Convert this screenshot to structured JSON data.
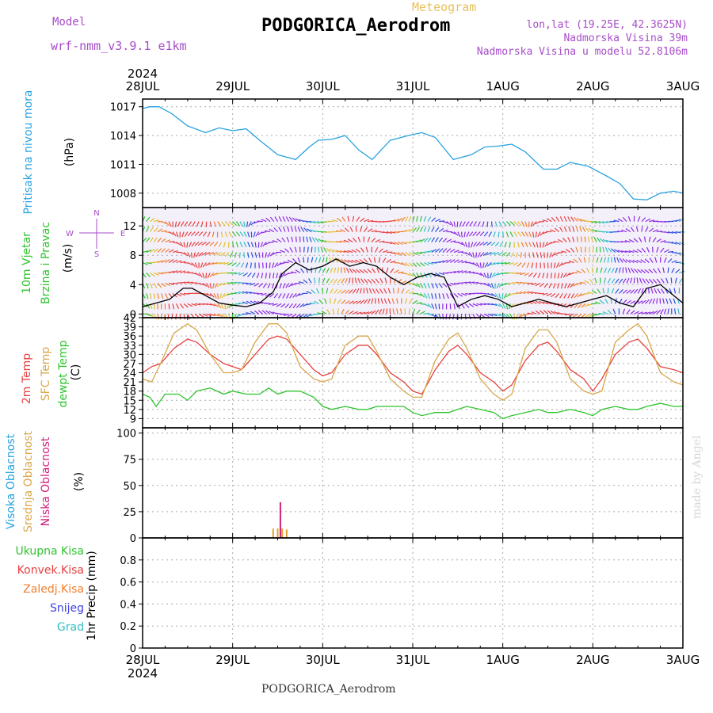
{
  "header": {
    "model_label": "Model",
    "model_value": "wrf-nmm_v3.9.1 e1km",
    "meteogram_label": "Meteogram",
    "station": "PODGORICA_Aerodrom",
    "lonlat": "lon,lat (19.25E, 42.3625N)",
    "elevation": "Nadmorska Visina 39m",
    "model_elevation": "Nadmorska Visina u modelu 52.8106m"
  },
  "footer": {
    "station": "PODGORICA_Aerodrom",
    "watermark": "made by Angel"
  },
  "time_axis": {
    "year": "2024",
    "labels": [
      "28JUL",
      "29JUL",
      "30JUL",
      "31JUL",
      "1AUG",
      "2AUG",
      "3AUG"
    ]
  },
  "colors": {
    "pressure": "#29a3e0",
    "wind_speed": "#000000",
    "t2m": "#e84040",
    "sfc_temp": "#d9a74a",
    "dewpoint": "#2fc42f",
    "cloud_high": "#29a3e0",
    "cloud_mid": "#e0a030",
    "cloud_low": "#d0207a",
    "grid": "#aaaaaa"
  },
  "chart_data": [
    {
      "type": "line",
      "panel": "pressure",
      "ylabel": [
        "Pritisak na nivou mora",
        "(hPa)"
      ],
      "ylim": [
        1006.5,
        1017.8
      ],
      "yticks": [
        1008,
        1011,
        1014,
        1017
      ],
      "grid": true,
      "series": [
        {
          "x": [
            0,
            0.08,
            0.18,
            0.32,
            0.5,
            0.7,
            0.85,
            1.0,
            1.15,
            1.3,
            1.5,
            1.7,
            1.85,
            1.95,
            2.1,
            2.25,
            2.4,
            2.55,
            2.75,
            2.95,
            3.1,
            3.25,
            3.45,
            3.65,
            3.8,
            3.95,
            4.1,
            4.25,
            4.45,
            4.6,
            4.75,
            4.95,
            5.15,
            5.3,
            5.45,
            5.6,
            5.75,
            5.9,
            6.0
          ],
          "values": [
            1016.8,
            1017.0,
            1017.0,
            1016.3,
            1015.0,
            1014.3,
            1014.8,
            1014.5,
            1014.7,
            1013.5,
            1012.0,
            1011.5,
            1012.8,
            1013.5,
            1013.6,
            1014.0,
            1012.5,
            1011.5,
            1013.5,
            1014.0,
            1014.3,
            1013.8,
            1011.5,
            1012.0,
            1012.8,
            1012.9,
            1013.1,
            1012.3,
            1010.5,
            1010.5,
            1011.2,
            1010.8,
            1009.8,
            1009.0,
            1007.4,
            1007.3,
            1008.0,
            1008.2,
            1008.0
          ]
        }
      ]
    },
    {
      "type": "line",
      "panel": "wind",
      "ylabel": [
        "10m Vjetar",
        "Brzina i Pravac",
        "(m/s)"
      ],
      "compass": {
        "n": "N",
        "s": "S",
        "e": "E",
        "w": "W"
      },
      "ylim": [
        -0.5,
        14.5
      ],
      "yticks": [
        0,
        4,
        8,
        12
      ],
      "grid": true,
      "series": [
        {
          "x": [
            0,
            0.15,
            0.3,
            0.45,
            0.55,
            0.7,
            0.85,
            1.0,
            1.15,
            1.3,
            1.45,
            1.55,
            1.7,
            1.85,
            2.0,
            2.15,
            2.3,
            2.45,
            2.6,
            2.75,
            2.9,
            3.05,
            3.2,
            3.35,
            3.5,
            3.65,
            3.8,
            3.95,
            4.1,
            4.25,
            4.4,
            4.55,
            4.7,
            4.85,
            5.0,
            5.15,
            5.3,
            5.45,
            5.6,
            5.75,
            5.9,
            6.0
          ],
          "values": [
            1.0,
            1.5,
            2.0,
            3.5,
            3.5,
            2.5,
            1.5,
            1.2,
            1.0,
            1.5,
            3.0,
            5.5,
            7.0,
            6.0,
            6.5,
            7.5,
            6.5,
            7.0,
            6.5,
            5.0,
            4.0,
            5.0,
            5.5,
            5.0,
            1.0,
            2.0,
            2.5,
            2.0,
            1.0,
            1.5,
            2.0,
            1.5,
            1.0,
            1.5,
            2.0,
            2.5,
            1.5,
            1.0,
            3.5,
            4.0,
            2.5,
            1.5
          ]
        }
      ]
    },
    {
      "type": "line",
      "panel": "temperature",
      "ylabel": [
        "2m Temp",
        "SFC Temp",
        "dewpt Temp",
        "(C)"
      ],
      "ylim": [
        6,
        42
      ],
      "yticks": [
        9,
        12,
        15,
        18,
        21,
        24,
        27,
        30,
        33,
        36,
        39,
        42
      ],
      "grid": true,
      "series": [
        {
          "name": "2m Temp",
          "x": [
            0,
            0.1,
            0.2,
            0.35,
            0.5,
            0.6,
            0.75,
            0.9,
            1.0,
            1.1,
            1.25,
            1.4,
            1.5,
            1.6,
            1.75,
            1.9,
            2.0,
            2.1,
            2.25,
            2.4,
            2.5,
            2.6,
            2.75,
            2.9,
            3.0,
            3.1,
            3.25,
            3.4,
            3.5,
            3.6,
            3.75,
            3.9,
            4.0,
            4.1,
            4.25,
            4.4,
            4.5,
            4.6,
            4.75,
            4.9,
            5.0,
            5.1,
            5.25,
            5.4,
            5.5,
            5.6,
            5.75,
            5.9,
            6.0
          ],
          "values": [
            24,
            26,
            27,
            32,
            35,
            34,
            30,
            27,
            26,
            25,
            30,
            35,
            36,
            35,
            30,
            25,
            23,
            24,
            30,
            33,
            33,
            30,
            24,
            21,
            18,
            17,
            25,
            31,
            33,
            30,
            24,
            21,
            18,
            20,
            28,
            33,
            34,
            31,
            25,
            22,
            18,
            22,
            30,
            34,
            35,
            32,
            26,
            25,
            24
          ]
        },
        {
          "name": "SFC Temp",
          "x": [
            0,
            0.1,
            0.2,
            0.35,
            0.5,
            0.6,
            0.75,
            0.9,
            1.0,
            1.1,
            1.25,
            1.4,
            1.5,
            1.6,
            1.75,
            1.9,
            2.0,
            2.1,
            2.25,
            2.4,
            2.5,
            2.6,
            2.75,
            2.9,
            3.0,
            3.1,
            3.25,
            3.4,
            3.5,
            3.6,
            3.75,
            3.9,
            4.0,
            4.1,
            4.25,
            4.4,
            4.5,
            4.6,
            4.75,
            4.9,
            5.0,
            5.1,
            5.25,
            5.4,
            5.5,
            5.6,
            5.75,
            5.9,
            6.0
          ],
          "values": [
            22,
            21,
            27,
            37,
            40,
            38,
            30,
            24,
            24,
            25,
            34,
            40,
            40,
            37,
            26,
            22,
            21,
            22,
            33,
            36,
            36,
            31,
            22,
            18,
            16,
            16,
            28,
            35,
            37,
            32,
            22,
            17,
            15,
            17,
            32,
            38,
            38,
            34,
            22,
            18,
            17,
            18,
            34,
            38,
            40,
            36,
            24,
            21,
            20
          ]
        },
        {
          "name": "dewpt Temp",
          "x": [
            0,
            0.08,
            0.15,
            0.25,
            0.4,
            0.5,
            0.6,
            0.75,
            0.9,
            1.0,
            1.15,
            1.3,
            1.4,
            1.5,
            1.6,
            1.75,
            1.9,
            2.0,
            2.1,
            2.25,
            2.4,
            2.5,
            2.6,
            2.75,
            2.9,
            3.0,
            3.1,
            3.25,
            3.4,
            3.5,
            3.6,
            3.75,
            3.9,
            4.0,
            4.1,
            4.25,
            4.4,
            4.5,
            4.6,
            4.75,
            4.9,
            5.0,
            5.1,
            5.25,
            5.4,
            5.5,
            5.6,
            5.75,
            5.9,
            6.0
          ],
          "values": [
            17,
            16,
            13,
            17,
            17,
            15,
            18,
            19,
            17,
            18,
            17,
            17,
            19,
            17,
            18,
            18,
            16,
            13,
            12,
            13,
            12,
            12,
            13,
            13,
            13,
            11,
            10,
            11,
            11,
            12,
            13,
            12,
            11,
            9,
            10,
            11,
            12,
            11,
            11,
            12,
            11,
            10,
            12,
            13,
            12,
            12,
            13,
            14,
            13,
            13
          ]
        }
      ]
    },
    {
      "type": "bar",
      "panel": "clouds",
      "ylabel": [
        "Visoka Oblacnost",
        "Srednja Oblacnost",
        "Niska Oblacnost",
        "(%)"
      ],
      "ylim": [
        0,
        105
      ],
      "yticks": [
        0,
        25,
        50,
        75,
        100
      ],
      "grid": true,
      "series": [
        {
          "name": "Visoka Oblacnost",
          "x": [],
          "values": []
        },
        {
          "name": "Srednja Oblacnost",
          "x": [
            1.45,
            1.5,
            1.55,
            1.6
          ],
          "values": [
            9,
            9,
            9,
            8
          ]
        },
        {
          "name": "Niska Oblacnost",
          "x": [
            1.53
          ],
          "values": [
            34
          ]
        }
      ]
    },
    {
      "type": "bar",
      "panel": "precipitation",
      "ylabel": [
        "1hr Precip (mm)"
      ],
      "legend": [
        "Ukupna Kisa",
        "Konvek.Kisa",
        "Zaledj.Kisa",
        "Snijeg",
        "Grad"
      ],
      "legend_colors": [
        "#2fc42f",
        "#e84040",
        "#f08030",
        "#4040e0",
        "#30c0c0"
      ],
      "ylim": [
        0,
        1.0
      ],
      "yticks": [
        0,
        0.2,
        0.4,
        0.6,
        0.8
      ],
      "grid": true,
      "series": [
        {
          "x": [],
          "values": []
        }
      ]
    }
  ]
}
